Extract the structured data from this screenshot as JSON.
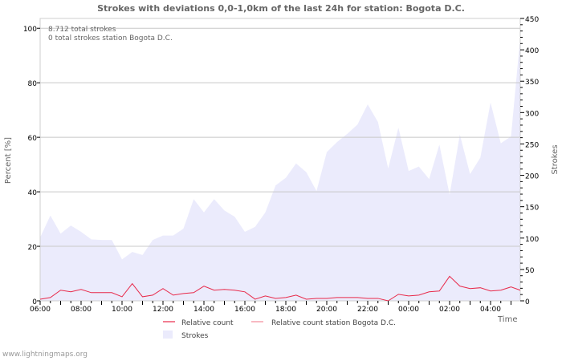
{
  "chart_data": {
    "type": "area+line",
    "title": "Strokes with deviations 0,0-1,0km of the last 24h for station: Bogota D.C.",
    "annotations": [
      "8.712 total strokes",
      "0 total strokes station Bogota D.C."
    ],
    "xlabel": "Time",
    "ylabel_left": "Percent   [%]",
    "ylabel_right": "Strokes",
    "ylim_left": [
      0,
      103.6
    ],
    "ylim_right": [
      0,
      450
    ],
    "yticks_left": [
      0,
      20,
      40,
      60,
      80,
      100
    ],
    "yticks_right": [
      0,
      50,
      100,
      150,
      200,
      250,
      300,
      350,
      400,
      450
    ],
    "xticks": [
      "06:00",
      "08:00",
      "10:00",
      "12:00",
      "14:00",
      "16:00",
      "18:00",
      "20:00",
      "22:00",
      "00:00",
      "02:00",
      "04:00"
    ],
    "x_hours_from_start": [
      0,
      0.5,
      1,
      1.5,
      2,
      2.5,
      3,
      3.5,
      4,
      4.5,
      5,
      5.5,
      6,
      6.5,
      7,
      7.5,
      8,
      8.5,
      9,
      9.5,
      10,
      10.5,
      11,
      11.5,
      12,
      12.5,
      13,
      13.5,
      14,
      14.5,
      15,
      15.5,
      16,
      16.5,
      17,
      17.5,
      18,
      18.5,
      19,
      19.5,
      20,
      20.5,
      21,
      21.5,
      22,
      22.5,
      23,
      23.45
    ],
    "grid": true,
    "legend_position": "bottom",
    "series": [
      {
        "name": "Relative count",
        "axis": "left",
        "color": "#e8294a",
        "values": [
          0.6,
          1.2,
          3.9,
          3.3,
          4.2,
          3.0,
          3.0,
          3.0,
          1.5,
          6.3,
          1.5,
          2.1,
          4.5,
          2.1,
          2.7,
          3.0,
          5.4,
          3.9,
          4.2,
          3.9,
          3.3,
          0.6,
          1.8,
          0.9,
          1.2,
          2.1,
          0.6,
          0.9,
          0.9,
          1.2,
          1.2,
          1.2,
          0.9,
          0.9,
          0,
          2.4,
          1.8,
          2.1,
          3.3,
          3.6,
          9.0,
          5.4,
          4.5,
          4.8,
          3.6,
          3.9,
          5.1,
          3.9
        ]
      },
      {
        "name": "Relative count station Bogota D.C.",
        "axis": "left",
        "color": "#f28a9a",
        "values": []
      },
      {
        "name": "Strokes",
        "axis": "right",
        "color": "#ebebfc",
        "values": [
          101,
          136,
          107,
          120,
          110,
          98,
          97,
          97,
          66,
          78,
          73,
          97,
          104,
          104,
          115,
          162,
          141,
          162,
          144,
          134,
          110,
          118,
          141,
          184,
          196,
          219,
          205,
          175,
          237,
          253,
          266,
          281,
          313,
          285,
          211,
          276,
          207,
          214,
          194,
          249,
          169,
          265,
          202,
          228,
          316,
          251,
          262,
          420
        ]
      }
    ]
  },
  "footer": "www.lightningmaps.org"
}
